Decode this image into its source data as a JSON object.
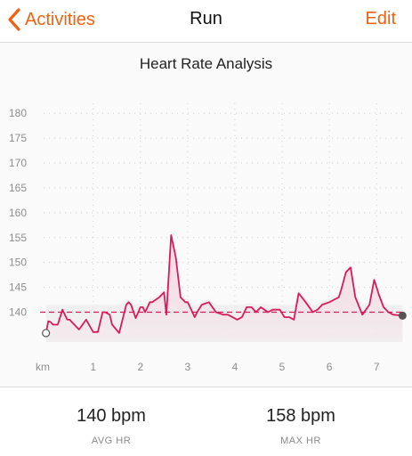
{
  "nav": {
    "back_label": "Activities",
    "title": "Run",
    "edit_label": "Edit",
    "accent_color": "#f0620f"
  },
  "section": {
    "title": "Heart Rate Analysis"
  },
  "chart_data": {
    "type": "line",
    "title": "Heart Rate Analysis",
    "xlabel": "km",
    "ylabel": "",
    "y_ticks": [
      "180",
      "175",
      "170",
      "165",
      "160",
      "155",
      "150",
      "145",
      "140"
    ],
    "x_ticks": [
      "km",
      "1",
      "2",
      "3",
      "4",
      "5",
      "6",
      "7"
    ],
    "xlim": [
      -0.05,
      7.6
    ],
    "ylim": [
      134,
      182
    ],
    "average_line": 140,
    "line_color": "#d81b5a",
    "fill_color": "#f7d5e0",
    "series": [
      {
        "x": [
          0.0,
          0.05,
          0.1,
          0.15,
          0.25,
          0.35,
          0.45,
          0.5,
          0.6,
          0.7,
          0.85,
          1.0,
          1.05,
          1.1,
          1.2,
          1.25,
          1.35,
          1.4,
          1.55,
          1.7,
          1.75,
          1.8,
          1.9,
          2.0,
          2.05,
          2.1,
          2.2,
          2.25,
          2.4,
          2.5,
          2.55,
          2.65,
          2.75,
          2.85,
          2.95,
          3.0,
          3.1,
          3.15,
          3.2,
          3.3,
          3.45,
          3.6,
          3.75,
          3.85,
          4.05,
          4.15,
          4.25,
          4.35,
          4.45,
          4.55,
          4.7,
          4.8,
          4.95,
          5.05,
          5.15,
          5.25,
          5.35,
          5.5,
          5.65,
          5.75,
          5.85,
          6.0,
          6.1,
          6.2,
          6.25,
          6.35,
          6.45,
          6.55,
          6.7,
          6.85,
          6.95,
          7.0,
          7.05,
          7.15,
          7.25,
          7.35,
          7.55
        ],
        "values": [
          135.8,
          138.2,
          138.0,
          137.5,
          137.5,
          140.5,
          138.5,
          138.5,
          137.5,
          136.5,
          138.5,
          136.0,
          136.0,
          136.0,
          140.0,
          140.0,
          139.5,
          137.5,
          135.8,
          141.5,
          142.0,
          141.5,
          138.8,
          141.0,
          141.0,
          140.0,
          142.0,
          142.0,
          143.0,
          144.0,
          139.5,
          155.5,
          151.0,
          143.0,
          142.0,
          142.0,
          140.0,
          139.0,
          140.0,
          141.5,
          142.0,
          140.0,
          139.5,
          139.5,
          138.5,
          139.0,
          141.0,
          141.0,
          140.0,
          141.0,
          140.0,
          140.5,
          140.5,
          139.0,
          139.0,
          138.5,
          143.8,
          142.0,
          140.0,
          140.5,
          141.5,
          142.0,
          142.5,
          143.0,
          144.5,
          148.0,
          149.0,
          143.0,
          139.5,
          141.5,
          146.5,
          145.0,
          143.5,
          141.0,
          140.0,
          139.5,
          139.3
        ]
      }
    ]
  },
  "stats": {
    "avg_value": "140 bpm",
    "avg_label": "AVG HR",
    "max_value": "158 bpm",
    "max_label": "MAX HR"
  }
}
